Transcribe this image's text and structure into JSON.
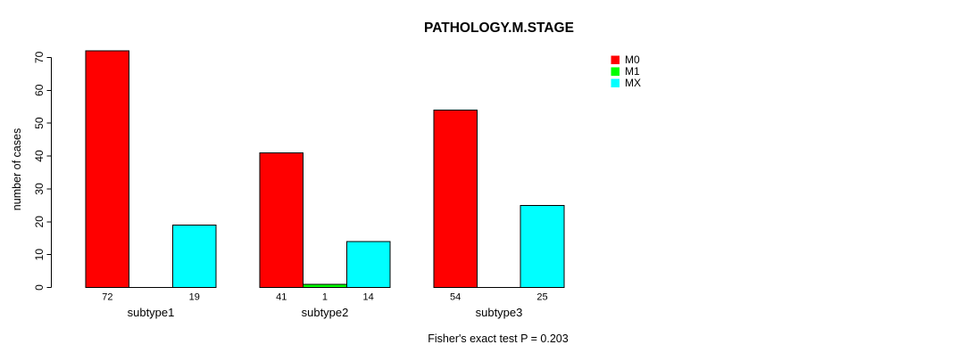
{
  "chart_data": {
    "type": "bar",
    "title": "PATHOLOGY.M.STAGE",
    "ylabel": "number of cases",
    "xlabel": "",
    "categories": [
      "subtype1",
      "subtype2",
      "subtype3"
    ],
    "series": [
      {
        "name": "M0",
        "color": "#ff0000",
        "values": [
          72,
          41,
          54
        ]
      },
      {
        "name": "M1",
        "color": "#00ff00",
        "values": [
          0,
          1,
          0
        ]
      },
      {
        "name": "MX",
        "color": "#00ffff",
        "values": [
          19,
          14,
          25
        ]
      }
    ],
    "bar_value_labels": [
      [
        "72",
        null,
        "19"
      ],
      [
        "41",
        "1",
        "14"
      ],
      [
        "54",
        null,
        "25"
      ]
    ],
    "ylim": [
      0,
      70
    ],
    "yticks": [
      0,
      10,
      20,
      30,
      40,
      50,
      60,
      70
    ],
    "grid": false,
    "legend_position": "top-right",
    "legend_entries": [
      "M0",
      "M1",
      "MX"
    ],
    "annotation": "Fisher's exact test P = 0.203",
    "colors": {
      "bar_border": "#000000",
      "axis": "#000000",
      "background": "#ffffff"
    }
  }
}
